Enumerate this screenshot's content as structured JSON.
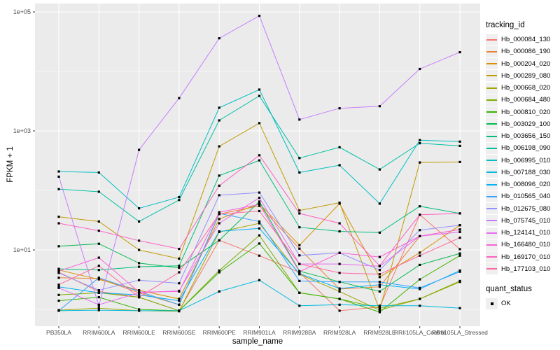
{
  "figure": {
    "background": "#FFFFFF",
    "panel_background": "#EBEBEB",
    "grid_color": "#FFFFFF",
    "tick_mark_color": "#333333",
    "tick_label_color": "#4D4D4D",
    "point_color": "#000000"
  },
  "chart_data": {
    "type": "line",
    "title": "",
    "xlabel": "sample_name",
    "ylabel": "FPKM + 1",
    "y_scale": "log10",
    "ylim": [
      0.52,
      131000
    ],
    "grid": true,
    "legend_position": "right",
    "y_major_ticks": [
      {
        "label": "1e+01",
        "value": 10
      },
      {
        "label": "1e+03",
        "value": 1000
      },
      {
        "label": "1e+05",
        "value": 100000
      }
    ],
    "y_minor_ticks": [
      1,
      100,
      10000
    ],
    "categories": [
      "PB350LA",
      "RRIM600LA",
      "RRIM600LE",
      "RRIM600SE",
      "RRIM600PE",
      "RRIM901LA",
      "RRIM928BA",
      "RRIM928LA",
      "RRIM928LE",
      "RRII105LA_Control",
      "RRII105LA_Stressed"
    ],
    "point_shape": "filled-square",
    "series": [
      {
        "name": "Hb_000084_130",
        "color": "#F8766D",
        "values": [
          4.2,
          2.0,
          1.6,
          0.95,
          14.5,
          8.0,
          4.2,
          0.95,
          1.1,
          39,
          10.3
        ]
      },
      {
        "name": "Hb_000086_190",
        "color": "#EA8331",
        "values": [
          3.4,
          3.3,
          1.9,
          1.2,
          40,
          55,
          10.5,
          2.2,
          2.4,
          17,
          22
        ]
      },
      {
        "name": "Hb_000204_020",
        "color": "#D89000",
        "values": [
          4.6,
          3.2,
          2.1,
          1.5,
          33,
          60,
          12,
          60,
          3.5,
          9,
          26
        ]
      },
      {
        "name": "Hb_000289_080",
        "color": "#C09B00",
        "values": [
          36,
          30,
          10,
          7.1,
          550,
          1350,
          46,
          62,
          0.97,
          295,
          300
        ]
      },
      {
        "name": "Hb_000668_020",
        "color": "#A3A500",
        "values": [
          0.97,
          1.05,
          0.95,
          0.93,
          20,
          28,
          3.9,
          2.0,
          0.97,
          1.5,
          2.9
        ]
      },
      {
        "name": "Hb_000684_480",
        "color": "#7CAE00",
        "values": [
          1.75,
          1.9,
          1.6,
          0.95,
          4.5,
          17.5,
          1.9,
          1.5,
          1.05,
          1.5,
          3.0
        ]
      },
      {
        "name": "Hb_000810_020",
        "color": "#39B600",
        "values": [
          1.4,
          1.6,
          1.0,
          0.95,
          4.2,
          12.8,
          1.9,
          1.5,
          0.9,
          3.2,
          8.0
        ]
      },
      {
        "name": "Hb_003029_100",
        "color": "#00BB4E",
        "values": [
          11.5,
          12.7,
          6.0,
          5.0,
          14.5,
          65,
          4.4,
          2.9,
          2.0,
          5.6,
          8.7
        ]
      },
      {
        "name": "Hb_003656_150",
        "color": "#00BF7D",
        "values": [
          4.8,
          4.6,
          5.2,
          5.4,
          177,
          320,
          24,
          20.5,
          19.5,
          54,
          41
        ]
      },
      {
        "name": "Hb_006198_090",
        "color": "#00C1A3",
        "values": [
          105,
          95,
          30,
          69,
          1500,
          3870,
          350,
          530,
          225,
          620,
          560
        ]
      },
      {
        "name": "Hb_006995_010",
        "color": "#00BFC4",
        "values": [
          208,
          200,
          50,
          77,
          2450,
          4950,
          200,
          265,
          60,
          700,
          660
        ]
      },
      {
        "name": "Hb_007188_030",
        "color": "#00BADE",
        "values": [
          0.95,
          0.97,
          0.95,
          0.95,
          2.0,
          3.1,
          1.15,
          1.2,
          1.15,
          1.15,
          1.05
        ]
      },
      {
        "name": "Hb_008096_020",
        "color": "#00B0F6",
        "values": [
          2.4,
          1.9,
          1.75,
          1.4,
          20.5,
          23,
          4.0,
          2.25,
          2.6,
          2.2,
          4.5
        ]
      },
      {
        "name": "Hb_010565_040",
        "color": "#35A2FF",
        "values": [
          0.95,
          3.4,
          2.0,
          1.2,
          41,
          30,
          3.0,
          2.9,
          2.9,
          2.3,
          4.3
        ]
      },
      {
        "name": "Hb_012675_080",
        "color": "#9590FF",
        "values": [
          4.1,
          2.1,
          3.1,
          2.75,
          83,
          92,
          8.1,
          8.9,
          4.6,
          21.5,
          26
        ]
      },
      {
        "name": "Hb_075745_010",
        "color": "#C77CFF",
        "values": [
          170,
          1.15,
          480,
          3550,
          36000,
          86000,
          1550,
          2400,
          2600,
          11000,
          21000
        ]
      },
      {
        "name": "Hb_124141_010",
        "color": "#E76BF3",
        "values": [
          2.3,
          1.2,
          1.9,
          2.05,
          28,
          75,
          5.8,
          5.8,
          5.3,
          17,
          20
        ]
      },
      {
        "name": "Hb_166480_010",
        "color": "#FA62DB",
        "values": [
          4.4,
          7.4,
          1.95,
          2.0,
          43,
          58,
          4.3,
          8.9,
          7.6,
          17,
          22
        ]
      },
      {
        "name": "Hb_169170_010",
        "color": "#FF61C3",
        "values": [
          28,
          21,
          14.3,
          10.4,
          120,
          390,
          41,
          28,
          5.4,
          39,
          41
        ]
      },
      {
        "name": "Hb_177103_010",
        "color": "#FF67A4",
        "values": [
          2.6,
          5.4,
          1.6,
          4.2,
          40,
          45,
          5.8,
          4.1,
          3.9,
          8.0,
          16
        ]
      }
    ]
  },
  "legend": {
    "tracking": {
      "title": "tracking_id"
    },
    "quant": {
      "title": "quant_status",
      "items": [
        {
          "label": "OK"
        }
      ]
    }
  }
}
